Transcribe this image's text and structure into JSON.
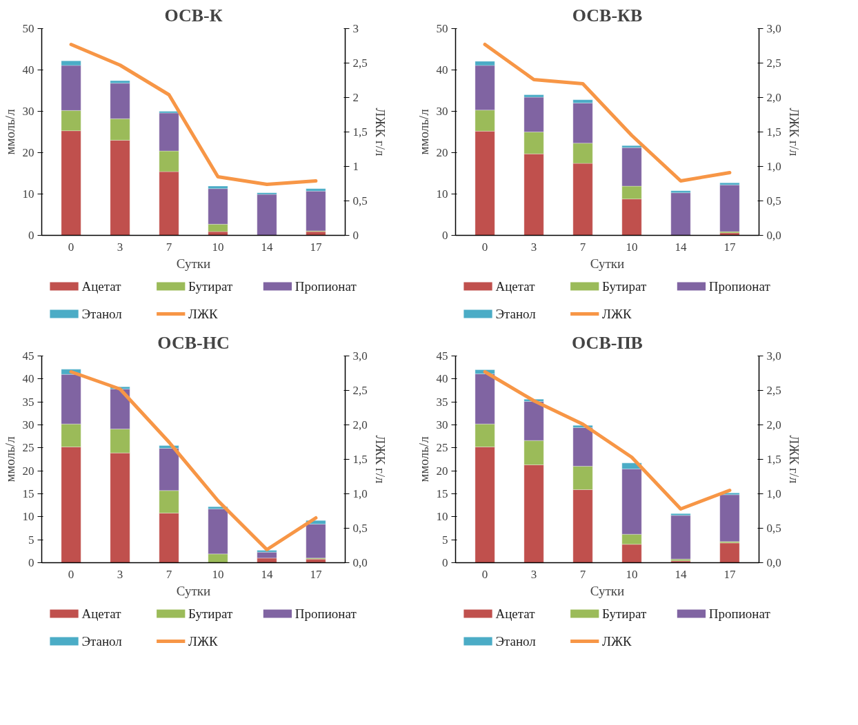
{
  "chart_data": [
    {
      "type": "bar",
      "title": "ОСВ-К",
      "xlabel": "Сутки",
      "ylabel": "ммоль/л",
      "y2label": "ЛЖК г/л",
      "stacked": true,
      "grid": false,
      "legend": "bottom",
      "categories": [
        "0",
        "3",
        "7",
        "10",
        "14",
        "17"
      ],
      "ylim": [
        0,
        50
      ],
      "yticks": [
        0,
        10,
        20,
        30,
        40,
        50
      ],
      "y2lim": [
        0,
        3
      ],
      "y2ticks": [
        0,
        {
          "value": 0.5,
          "label": "0,5"
        },
        1,
        {
          "value": 1.5,
          "label": "1,5"
        },
        2,
        {
          "value": 2.5,
          "label": "2,5"
        },
        3
      ],
      "series": [
        {
          "name": "Ацетат",
          "color": "#c0504d",
          "values": [
            25.3,
            23.0,
            15.4,
            0.9,
            0,
            0.9
          ]
        },
        {
          "name": "Бутират",
          "color": "#9bbb59",
          "values": [
            4.9,
            5.2,
            5.0,
            1.8,
            0,
            0.2
          ]
        },
        {
          "name": "Пропионат",
          "color": "#8064a2",
          "values": [
            10.9,
            8.6,
            9.2,
            8.6,
            9.9,
            9.6
          ]
        },
        {
          "name": "Этанол",
          "color": "#4bacc6",
          "values": [
            1.1,
            0.6,
            0.4,
            0.6,
            0.4,
            0.6
          ]
        },
        {
          "name": "ЛЖК",
          "color": "#f79646",
          "type": "line",
          "axis": "y2",
          "values": [
            2.77,
            2.47,
            2.04,
            0.85,
            0.74,
            0.79
          ]
        }
      ]
    },
    {
      "type": "bar",
      "title": "ОСВ-КВ",
      "xlabel": "Сутки",
      "ylabel": "ммоль/л",
      "y2label": "ЛЖК г/л",
      "stacked": true,
      "grid": false,
      "legend": "bottom",
      "categories": [
        "0",
        "3",
        "7",
        "10",
        "14",
        "17"
      ],
      "ylim": [
        0,
        50
      ],
      "yticks": [
        0,
        10,
        20,
        30,
        40,
        50
      ],
      "y2lim": [
        0,
        3
      ],
      "y2ticks": [
        {
          "value": 0,
          "label": "0,0"
        },
        {
          "value": 0.5,
          "label": "0,5"
        },
        {
          "value": 1,
          "label": "1,0"
        },
        {
          "value": 1.5,
          "label": "1,5"
        },
        {
          "value": 2,
          "label": "2,0"
        },
        {
          "value": 2.5,
          "label": "2,5"
        },
        {
          "value": 3,
          "label": "3,0"
        }
      ],
      "series": [
        {
          "name": "Ацетат",
          "color": "#c0504d",
          "values": [
            25.2,
            19.7,
            17.4,
            8.8,
            0,
            0.6
          ]
        },
        {
          "name": "Бутират",
          "color": "#9bbb59",
          "values": [
            5.1,
            5.3,
            4.9,
            3.1,
            0,
            0.3
          ]
        },
        {
          "name": "Пропионат",
          "color": "#8064a2",
          "values": [
            10.8,
            8.4,
            9.7,
            9.3,
            10.3,
            11.3
          ]
        },
        {
          "name": "Этанол",
          "color": "#4bacc6",
          "values": [
            1.0,
            0.6,
            0.8,
            0.5,
            0.5,
            0.5
          ]
        },
        {
          "name": "ЛЖК",
          "color": "#f79646",
          "type": "line",
          "axis": "y2",
          "values": [
            2.77,
            2.26,
            2.2,
            1.45,
            0.79,
            0.91
          ]
        }
      ]
    },
    {
      "type": "bar",
      "title": "ОСВ-НС",
      "xlabel": "Сутки",
      "ylabel": "ммоль/л",
      "y2label": "ЛЖК г/л",
      "stacked": true,
      "grid": false,
      "legend": "bottom",
      "categories": [
        "0",
        "3",
        "7",
        "10",
        "14",
        "17"
      ],
      "ylim": [
        0,
        45
      ],
      "yticks": [
        0,
        5,
        10,
        15,
        20,
        25,
        30,
        35,
        40,
        45
      ],
      "y2lim": [
        0,
        3
      ],
      "y2ticks": [
        {
          "value": 0,
          "label": "0,0"
        },
        {
          "value": 0.5,
          "label": "0,5"
        },
        {
          "value": 1,
          "label": "1,0"
        },
        {
          "value": 1.5,
          "label": "1,5"
        },
        {
          "value": 2,
          "label": "2,0"
        },
        {
          "value": 2.5,
          "label": "2,5"
        },
        {
          "value": 3,
          "label": "3,0"
        }
      ],
      "series": [
        {
          "name": "Ацетат",
          "color": "#c0504d",
          "values": [
            25.2,
            23.9,
            10.8,
            null,
            1.0,
            0.8
          ]
        },
        {
          "name": "Бутират",
          "color": "#9bbb59",
          "values": [
            5.0,
            5.2,
            4.9,
            1.9,
            null,
            0.2
          ]
        },
        {
          "name": "Пропионат",
          "color": "#8064a2",
          "values": [
            10.8,
            8.7,
            9.2,
            9.8,
            1.3,
            7.4
          ]
        },
        {
          "name": "Этанол",
          "color": "#4bacc6",
          "values": [
            1.1,
            0.5,
            0.6,
            0.5,
            0.4,
            0.8
          ]
        },
        {
          "name": "ЛЖК",
          "color": "#f79646",
          "type": "line",
          "axis": "y2",
          "values": [
            2.77,
            2.52,
            1.75,
            0.9,
            0.19,
            0.65
          ]
        }
      ]
    },
    {
      "type": "bar",
      "title": "ОСВ-ПВ",
      "xlabel": "Сутки",
      "ylabel": "ммоль/л",
      "y2label": "ЛЖК г/л",
      "stacked": true,
      "grid": false,
      "legend": "bottom",
      "categories": [
        "0",
        "3",
        "7",
        "10",
        "14",
        "17"
      ],
      "ylim": [
        0,
        45
      ],
      "yticks": [
        0,
        5,
        10,
        15,
        20,
        25,
        30,
        35,
        40,
        45
      ],
      "y2lim": [
        0,
        3
      ],
      "y2ticks": [
        {
          "value": 0,
          "label": "0,0"
        },
        {
          "value": 0.5,
          "label": "0,5"
        },
        {
          "value": 1,
          "label": "1,0"
        },
        {
          "value": 1.5,
          "label": "1,5"
        },
        {
          "value": 2,
          "label": "2,0"
        },
        {
          "value": 2.5,
          "label": "2,5"
        },
        {
          "value": 3,
          "label": "3,0"
        }
      ],
      "series": [
        {
          "name": "Ацетат",
          "color": "#c0504d",
          "values": [
            25.2,
            21.3,
            15.9,
            4.0,
            0.4,
            4.3
          ]
        },
        {
          "name": "Бутират",
          "color": "#9bbb59",
          "values": [
            5.0,
            5.3,
            5.1,
            2.2,
            0.4,
            0.3
          ]
        },
        {
          "name": "Пропионат",
          "color": "#8064a2",
          "values": [
            10.9,
            8.5,
            8.4,
            14.2,
            9.5,
            10.2
          ]
        },
        {
          "name": "Этанол",
          "color": "#4bacc6",
          "values": [
            0.9,
            0.5,
            0.5,
            1.3,
            0.4,
            0.4
          ]
        },
        {
          "name": "ЛЖК",
          "color": "#f79646",
          "type": "line",
          "axis": "y2",
          "values": [
            2.77,
            2.35,
            2.01,
            1.53,
            0.78,
            1.05
          ]
        }
      ]
    }
  ]
}
